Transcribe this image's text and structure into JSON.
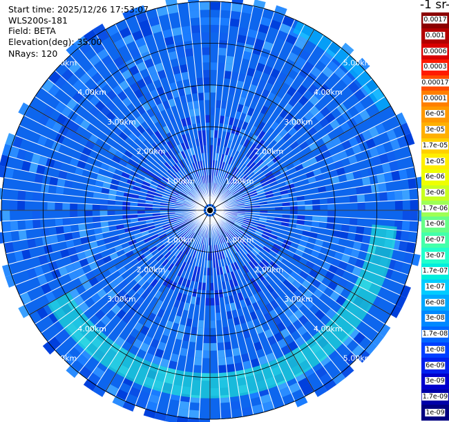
{
  "info": {
    "start_time_label": "Start time:",
    "start_time": "2025/12/26 17:53:07",
    "instrument": "WLS200s-181",
    "field_label": "Field:",
    "field": "BETA",
    "elevation_label": "Elevation(deg):",
    "elevation": "35.00",
    "nrays_label": "NRays:",
    "nrays": "120"
  },
  "colorbar": {
    "title_fragment": "-1 sr-",
    "labels": [
      "0.0017",
      "0.001",
      "0.0006",
      "0.0003",
      "0.00017",
      "0.0001",
      "6e-05",
      "3e-05",
      "1.7e-05",
      "1e-05",
      "6e-06",
      "3e-06",
      "1.7e-06",
      "1e-06",
      "6e-07",
      "3e-07",
      "1.7e-07",
      "1e-07",
      "6e-08",
      "3e-08",
      "1.7e-08",
      "1e-08",
      "6e-09",
      "3e-09",
      "1.7e-09",
      "1e-09"
    ],
    "colors": [
      "#8b0000",
      "#b20000",
      "#d90000",
      "#ff1a00",
      "#ff4d00",
      "#ff7f00",
      "#ff9900",
      "#ffb000",
      "#ffd000",
      "#ffee00",
      "#eeff00",
      "#c8ff20",
      "#9dff55",
      "#66ff88",
      "#44ffaa",
      "#22ffcc",
      "#00eedd",
      "#00ccff",
      "#00a8ff",
      "#0088ff",
      "#0066ff",
      "#0040ff",
      "#0020ee",
      "#0000cc",
      "#0000a8",
      "#000080"
    ]
  },
  "chart_data": {
    "type": "heatmap",
    "projection": "polar-ppi",
    "range_unit": "km",
    "range_max": 5.0,
    "range_rings": [
      1,
      2,
      3,
      4,
      5
    ],
    "ring_labels": [
      "1.00km",
      "2.00km",
      "3.00km",
      "4.00km",
      "5.00km"
    ],
    "n_rays": 120,
    "grid": true,
    "legend": "colorbar-right",
    "background_color": "#0d66ee",
    "features": [
      {
        "description": "enhanced backscatter arc",
        "range_km": [
          3.9,
          4.5
        ],
        "azimuth_deg": [
          95,
          240
        ],
        "color": "#22ffcc"
      },
      {
        "description": "enhanced backscatter arc",
        "range_km": [
          4.7,
          5.1
        ],
        "azimuth_deg": [
          25,
          60
        ],
        "color": "#00ccff"
      }
    ]
  }
}
